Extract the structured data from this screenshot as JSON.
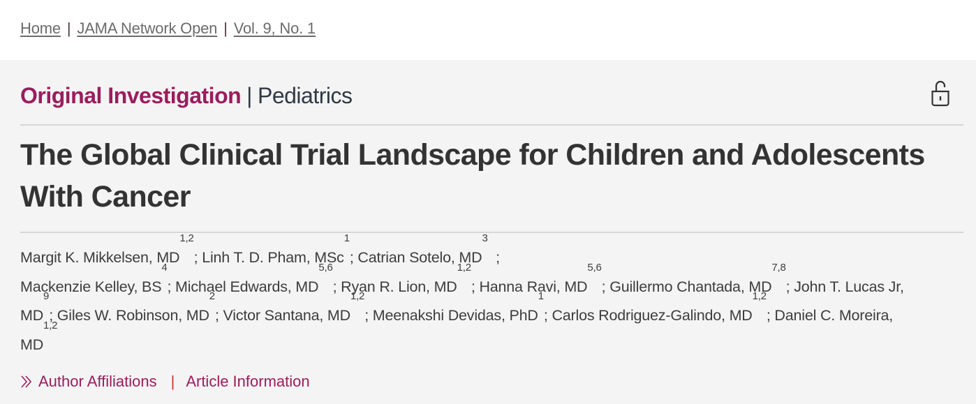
{
  "breadcrumb": {
    "items": [
      {
        "label": "Home"
      },
      {
        "label": "JAMA Network Open"
      },
      {
        "label": "Vol. 9, No. 1"
      }
    ],
    "separator": "|"
  },
  "article": {
    "type": "Original Investigation",
    "separator": "|",
    "subject": "Pediatrics",
    "access_icon": "unlocked-padlock-icon",
    "title": "The Global Clinical Trial Landscape for Children and Adolescents With Cancer",
    "authors": [
      {
        "name": "Margit K. Mikkelsen, MD",
        "aff": "1,2",
        "sep": "; "
      },
      {
        "name": "Linh T. D. Pham, MSc",
        "aff": "1",
        "sep": "; "
      },
      {
        "name": "Catrian Sotelo, MD",
        "aff": "3",
        "sep": "  ;"
      },
      {
        "name": "Mackenzie Kelley, BS",
        "aff": "4",
        "sep": "; "
      },
      {
        "name": "Michael Edwards, MD",
        "aff": "5,6",
        "sep": "; "
      },
      {
        "name": "Ryan R. Lion, MD",
        "aff": "1,2",
        "sep": "; "
      },
      {
        "name": "Hanna Ravi, MD",
        "aff": "5,6",
        "sep": "; "
      },
      {
        "name": "Guillermo Chantada, MD",
        "aff": "7,8",
        "sep": "; "
      },
      {
        "name": "John T. Lucas Jr, MD",
        "aff": "9",
        "sep": "; "
      },
      {
        "name": "Giles W. Robinson, MD",
        "aff": "2",
        "sep": "; "
      },
      {
        "name": "Victor Santana, MD",
        "aff": "1,2",
        "sep": "; "
      },
      {
        "name": "Meenakshi Devidas, PhD",
        "aff": "1",
        "sep": "; "
      },
      {
        "name": "Carlos Rodriguez-Galindo, MD",
        "aff": "1,2",
        "sep": "; "
      },
      {
        "name": "Daniel C. Moreira, MD",
        "aff": "1,2",
        "sep": ""
      }
    ],
    "links": {
      "affiliations": "Author Affiliations",
      "separator": "|",
      "article_info": "Article Information"
    }
  },
  "colors": {
    "accent": "#9b1d5d",
    "text": "#333333",
    "background": "#f4f4f4",
    "breadcrumb": "#6b6b6b"
  }
}
